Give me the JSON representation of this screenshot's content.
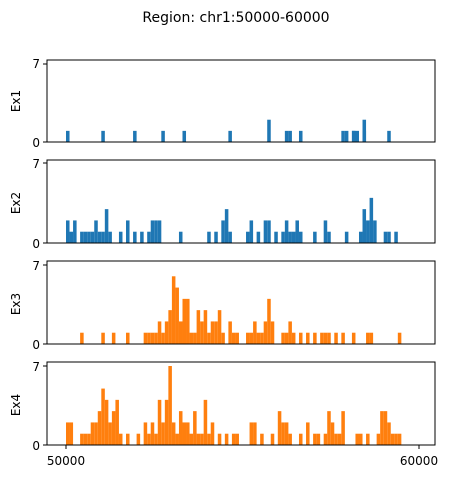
{
  "chart_data": {
    "type": "bar",
    "title": "Region: chr1:50000-60000",
    "xlim": [
      50000,
      60000
    ],
    "xticks": [
      50000,
      60000
    ],
    "x_tick_labels": [
      "50000",
      "60000"
    ],
    "bin_width": 100,
    "panels": [
      {
        "ylabel": "Ex1",
        "ylim": [
          0,
          7
        ],
        "yticks": [
          "0",
          "7"
        ],
        "color": "#1f77b4",
        "bins": [
          {
            "x": 50000,
            "y": 1
          },
          {
            "x": 51000,
            "y": 1
          },
          {
            "x": 51900,
            "y": 1
          },
          {
            "x": 52700,
            "y": 1
          },
          {
            "x": 53300,
            "y": 1
          },
          {
            "x": 54600,
            "y": 1
          },
          {
            "x": 55700,
            "y": 2
          },
          {
            "x": 56200,
            "y": 1
          },
          {
            "x": 56300,
            "y": 1
          },
          {
            "x": 56600,
            "y": 1
          },
          {
            "x": 57800,
            "y": 1
          },
          {
            "x": 57900,
            "y": 1
          },
          {
            "x": 58100,
            "y": 1
          },
          {
            "x": 58100,
            "y": 1
          },
          {
            "x": 58200,
            "y": 1
          },
          {
            "x": 58400,
            "y": 1
          },
          {
            "x": 58400,
            "y": 2
          },
          {
            "x": 59100,
            "y": 1
          }
        ]
      },
      {
        "ylabel": "Ex2",
        "ylim": [
          0,
          7
        ],
        "yticks": [
          "0",
          "7"
        ],
        "color": "#1f77b4",
        "bins": [
          {
            "x": 50000,
            "y": 2
          },
          {
            "x": 50100,
            "y": 1
          },
          {
            "x": 50200,
            "y": 2
          },
          {
            "x": 50400,
            "y": 1
          },
          {
            "x": 50500,
            "y": 1
          },
          {
            "x": 50600,
            "y": 1
          },
          {
            "x": 50700,
            "y": 1
          },
          {
            "x": 50800,
            "y": 2
          },
          {
            "x": 50900,
            "y": 1
          },
          {
            "x": 51000,
            "y": 1
          },
          {
            "x": 51100,
            "y": 3
          },
          {
            "x": 51200,
            "y": 1
          },
          {
            "x": 51500,
            "y": 1
          },
          {
            "x": 51700,
            "y": 2
          },
          {
            "x": 51900,
            "y": 1
          },
          {
            "x": 52100,
            "y": 1
          },
          {
            "x": 52300,
            "y": 1
          },
          {
            "x": 52400,
            "y": 2
          },
          {
            "x": 52500,
            "y": 2
          },
          {
            "x": 52600,
            "y": 2
          },
          {
            "x": 53200,
            "y": 1
          },
          {
            "x": 54000,
            "y": 1
          },
          {
            "x": 54200,
            "y": 1
          },
          {
            "x": 54400,
            "y": 2
          },
          {
            "x": 54500,
            "y": 3
          },
          {
            "x": 54600,
            "y": 1
          },
          {
            "x": 55100,
            "y": 1
          },
          {
            "x": 55200,
            "y": 2
          },
          {
            "x": 55400,
            "y": 1
          },
          {
            "x": 55600,
            "y": 2
          },
          {
            "x": 55700,
            "y": 2
          },
          {
            "x": 55900,
            "y": 1
          },
          {
            "x": 56100,
            "y": 1
          },
          {
            "x": 56200,
            "y": 2
          },
          {
            "x": 56300,
            "y": 1
          },
          {
            "x": 56400,
            "y": 1
          },
          {
            "x": 56500,
            "y": 2
          },
          {
            "x": 56600,
            "y": 1
          },
          {
            "x": 57000,
            "y": 1
          },
          {
            "x": 57300,
            "y": 2
          },
          {
            "x": 57400,
            "y": 1
          },
          {
            "x": 57900,
            "y": 1
          },
          {
            "x": 58300,
            "y": 1
          },
          {
            "x": 58400,
            "y": 3
          },
          {
            "x": 58500,
            "y": 2
          },
          {
            "x": 58600,
            "y": 4
          },
          {
            "x": 58700,
            "y": 2
          },
          {
            "x": 59000,
            "y": 1
          },
          {
            "x": 59100,
            "y": 1
          },
          {
            "x": 59300,
            "y": 1
          }
        ]
      },
      {
        "ylabel": "Ex3",
        "ylim": [
          0,
          7
        ],
        "yticks": [
          "0",
          "7"
        ],
        "color": "#ff7f0e",
        "bins": [
          {
            "x": 50400,
            "y": 1
          },
          {
            "x": 51000,
            "y": 1
          },
          {
            "x": 51300,
            "y": 1
          },
          {
            "x": 51700,
            "y": 1
          },
          {
            "x": 52200,
            "y": 1
          },
          {
            "x": 52300,
            "y": 1
          },
          {
            "x": 52400,
            "y": 1
          },
          {
            "x": 52500,
            "y": 1
          },
          {
            "x": 52600,
            "y": 2
          },
          {
            "x": 52700,
            "y": 1
          },
          {
            "x": 52800,
            "y": 2
          },
          {
            "x": 52900,
            "y": 3
          },
          {
            "x": 53000,
            "y": 6
          },
          {
            "x": 53100,
            "y": 5
          },
          {
            "x": 53200,
            "y": 2
          },
          {
            "x": 53300,
            "y": 4
          },
          {
            "x": 53400,
            "y": 4
          },
          {
            "x": 53500,
            "y": 1
          },
          {
            "x": 53600,
            "y": 1
          },
          {
            "x": 53700,
            "y": 3
          },
          {
            "x": 53800,
            "y": 2
          },
          {
            "x": 53900,
            "y": 3
          },
          {
            "x": 54000,
            "y": 1
          },
          {
            "x": 54100,
            "y": 2
          },
          {
            "x": 54200,
            "y": 2
          },
          {
            "x": 54300,
            "y": 3
          },
          {
            "x": 54400,
            "y": 1
          },
          {
            "x": 54600,
            "y": 2
          },
          {
            "x": 54700,
            "y": 1
          },
          {
            "x": 54800,
            "y": 1
          },
          {
            "x": 55100,
            "y": 1
          },
          {
            "x": 55200,
            "y": 1
          },
          {
            "x": 55300,
            "y": 2
          },
          {
            "x": 55400,
            "y": 1
          },
          {
            "x": 55500,
            "y": 1
          },
          {
            "x": 55600,
            "y": 2
          },
          {
            "x": 55700,
            "y": 4
          },
          {
            "x": 55800,
            "y": 2
          },
          {
            "x": 56100,
            "y": 1
          },
          {
            "x": 56200,
            "y": 1
          },
          {
            "x": 56300,
            "y": 2
          },
          {
            "x": 56400,
            "y": 1
          },
          {
            "x": 56600,
            "y": 1
          },
          {
            "x": 56800,
            "y": 1
          },
          {
            "x": 57000,
            "y": 1
          },
          {
            "x": 57200,
            "y": 1
          },
          {
            "x": 57300,
            "y": 1
          },
          {
            "x": 57400,
            "y": 1
          },
          {
            "x": 57600,
            "y": 1
          },
          {
            "x": 57800,
            "y": 1
          },
          {
            "x": 58100,
            "y": 1
          },
          {
            "x": 58500,
            "y": 1
          },
          {
            "x": 58600,
            "y": 1
          },
          {
            "x": 59400,
            "y": 1
          }
        ]
      },
      {
        "ylabel": "Ex4",
        "ylim": [
          0,
          7
        ],
        "yticks": [
          "0",
          "7"
        ],
        "color": "#ff7f0e",
        "bins": [
          {
            "x": 50000,
            "y": 2
          },
          {
            "x": 50100,
            "y": 2
          },
          {
            "x": 50400,
            "y": 1
          },
          {
            "x": 50500,
            "y": 1
          },
          {
            "x": 50600,
            "y": 1
          },
          {
            "x": 50700,
            "y": 2
          },
          {
            "x": 50800,
            "y": 2
          },
          {
            "x": 50900,
            "y": 3
          },
          {
            "x": 51000,
            "y": 5
          },
          {
            "x": 51100,
            "y": 4
          },
          {
            "x": 51200,
            "y": 2
          },
          {
            "x": 51300,
            "y": 3
          },
          {
            "x": 51400,
            "y": 4
          },
          {
            "x": 51500,
            "y": 1
          },
          {
            "x": 51700,
            "y": 1
          },
          {
            "x": 52000,
            "y": 1
          },
          {
            "x": 52200,
            "y": 2
          },
          {
            "x": 52300,
            "y": 1
          },
          {
            "x": 52400,
            "y": 2
          },
          {
            "x": 52500,
            "y": 1
          },
          {
            "x": 52600,
            "y": 4
          },
          {
            "x": 52700,
            "y": 2
          },
          {
            "x": 52800,
            "y": 4
          },
          {
            "x": 52900,
            "y": 7
          },
          {
            "x": 53000,
            "y": 2
          },
          {
            "x": 53100,
            "y": 1
          },
          {
            "x": 53200,
            "y": 3
          },
          {
            "x": 53300,
            "y": 2
          },
          {
            "x": 53400,
            "y": 2
          },
          {
            "x": 53500,
            "y": 1
          },
          {
            "x": 53600,
            "y": 3
          },
          {
            "x": 53700,
            "y": 1
          },
          {
            "x": 53800,
            "y": 1
          },
          {
            "x": 53900,
            "y": 4
          },
          {
            "x": 54000,
            "y": 1
          },
          {
            "x": 54100,
            "y": 2
          },
          {
            "x": 54300,
            "y": 1
          },
          {
            "x": 54500,
            "y": 1
          },
          {
            "x": 54700,
            "y": 1
          },
          {
            "x": 54800,
            "y": 1
          },
          {
            "x": 55200,
            "y": 2
          },
          {
            "x": 55300,
            "y": 2
          },
          {
            "x": 55500,
            "y": 1
          },
          {
            "x": 55800,
            "y": 1
          },
          {
            "x": 56000,
            "y": 3
          },
          {
            "x": 56100,
            "y": 2
          },
          {
            "x": 56200,
            "y": 2
          },
          {
            "x": 56300,
            "y": 1
          },
          {
            "x": 56600,
            "y": 1
          },
          {
            "x": 56800,
            "y": 2
          },
          {
            "x": 57000,
            "y": 1
          },
          {
            "x": 57100,
            "y": 1
          },
          {
            "x": 57300,
            "y": 1
          },
          {
            "x": 57400,
            "y": 3
          },
          {
            "x": 57500,
            "y": 2
          },
          {
            "x": 57600,
            "y": 1
          },
          {
            "x": 57700,
            "y": 1
          },
          {
            "x": 57800,
            "y": 3
          },
          {
            "x": 58200,
            "y": 1
          },
          {
            "x": 58300,
            "y": 1
          },
          {
            "x": 58500,
            "y": 1
          },
          {
            "x": 58800,
            "y": 1
          },
          {
            "x": 58900,
            "y": 3
          },
          {
            "x": 59000,
            "y": 3
          },
          {
            "x": 59100,
            "y": 2
          },
          {
            "x": 59200,
            "y": 1
          },
          {
            "x": 59300,
            "y": 1
          },
          {
            "x": 59400,
            "y": 1
          }
        ]
      }
    ]
  }
}
